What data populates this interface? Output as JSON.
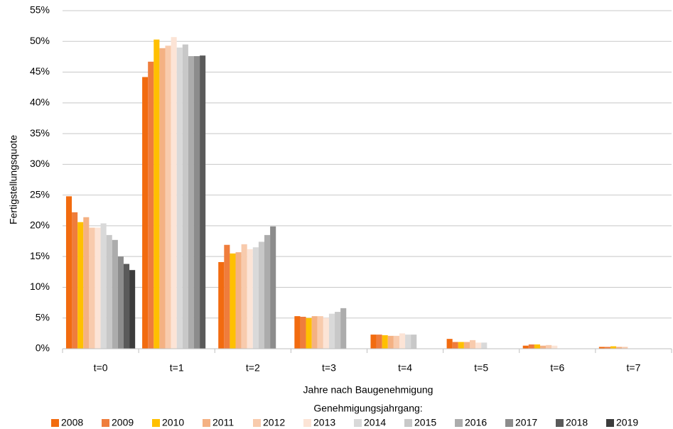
{
  "chart_data": {
    "type": "bar",
    "x_label": "Jahre nach Baugenehmigung",
    "y_label": "Fertigstellungsquote",
    "legend_title": "Genehmigungsjahrgang:",
    "legend_position": "bottom",
    "grid": true,
    "categories": [
      "t=0",
      "t=1",
      "t=2",
      "t=3",
      "t=4",
      "t=5",
      "t=6",
      "t=7"
    ],
    "ylim": [
      0,
      55
    ],
    "yticks": [
      {
        "value": 0,
        "label": "0%"
      },
      {
        "value": 5,
        "label": "5%"
      },
      {
        "value": 10,
        "label": "10%"
      },
      {
        "value": 15,
        "label": "15%"
      },
      {
        "value": 20,
        "label": "20%"
      },
      {
        "value": 25,
        "label": "25%"
      },
      {
        "value": 30,
        "label": "30%"
      },
      {
        "value": 35,
        "label": "35%"
      },
      {
        "value": 40,
        "label": "40%"
      },
      {
        "value": 45,
        "label": "45%"
      },
      {
        "value": 50,
        "label": "50%"
      },
      {
        "value": 55,
        "label": "55%"
      }
    ],
    "series": [
      {
        "name": "2008",
        "color": "#f26b0f",
        "values": [
          24.8,
          44.2,
          14.1,
          5.3,
          2.3,
          1.6,
          0.5,
          0.3
        ]
      },
      {
        "name": "2009",
        "color": "#ef7d3c",
        "values": [
          22.2,
          46.7,
          16.9,
          5.2,
          2.3,
          1.1,
          0.7,
          0.3
        ]
      },
      {
        "name": "2010",
        "color": "#ffc000",
        "values": [
          20.6,
          50.3,
          15.5,
          5.0,
          2.2,
          1.1,
          0.7,
          0.4
        ]
      },
      {
        "name": "2011",
        "color": "#f4b183",
        "values": [
          21.4,
          48.9,
          15.7,
          5.3,
          2.1,
          1.1,
          0.5,
          0.3
        ]
      },
      {
        "name": "2012",
        "color": "#f8cbad",
        "values": [
          19.7,
          49.3,
          17.0,
          5.3,
          2.1,
          1.4,
          0.6,
          0.3
        ]
      },
      {
        "name": "2013",
        "color": "#fce4d6",
        "values": [
          19.7,
          50.7,
          16.2,
          5.0,
          2.5,
          1.0,
          0.5,
          null
        ]
      },
      {
        "name": "2014",
        "color": "#d9d9d9",
        "values": [
          20.4,
          49.0,
          16.5,
          5.7,
          2.3,
          1.0,
          null,
          null
        ]
      },
      {
        "name": "2015",
        "color": "#c8c8c8",
        "values": [
          18.5,
          49.5,
          17.4,
          6.0,
          2.3,
          null,
          null,
          null
        ]
      },
      {
        "name": "2016",
        "color": "#acacac",
        "values": [
          17.7,
          47.6,
          18.5,
          6.6,
          null,
          null,
          null,
          null
        ]
      },
      {
        "name": "2017",
        "color": "#8c8c8c",
        "values": [
          15.0,
          47.6,
          19.9,
          null,
          null,
          null,
          null,
          null
        ]
      },
      {
        "name": "2018",
        "color": "#5a5a5a",
        "values": [
          13.8,
          47.7,
          null,
          null,
          null,
          null,
          null,
          null
        ]
      },
      {
        "name": "2019",
        "color": "#3c3c3c",
        "values": [
          12.8,
          null,
          null,
          null,
          null,
          null,
          null,
          null
        ]
      }
    ]
  }
}
